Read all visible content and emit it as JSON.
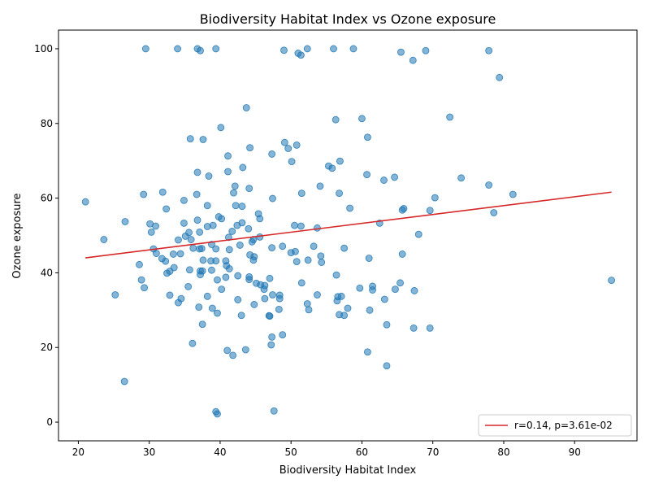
{
  "chart_data": {
    "type": "scatter",
    "title": "Biodiversity Habitat Index vs Ozone exposure",
    "xlabel": "Biodiversity Habitat Index",
    "ylabel": "Ozone exposure",
    "xlim": [
      17.2,
      98.8
    ],
    "ylim": [
      -5,
      105
    ],
    "xticks": [
      "20",
      "30",
      "40",
      "50",
      "60",
      "70",
      "80",
      "90"
    ],
    "yticks": [
      "0",
      "20",
      "40",
      "60",
      "80",
      "100"
    ],
    "grid": false,
    "legend_position": "bottom-right",
    "point_color": "#1f77b4",
    "line_color": "#d62728",
    "fit_line": {
      "label": "r=0.14, p=3.61e-02",
      "x": [
        21.0,
        95.2
      ],
      "y": [
        44.0,
        61.6
      ]
    },
    "points": [
      [
        29.5,
        100
      ],
      [
        34,
        100
      ],
      [
        36.8,
        100
      ],
      [
        37.2,
        99.5
      ],
      [
        39.4,
        100
      ],
      [
        49,
        99.6
      ],
      [
        51,
        98.8
      ],
      [
        51.4,
        98.3
      ],
      [
        52.3,
        100
      ],
      [
        56,
        100
      ],
      [
        58.8,
        100
      ],
      [
        65.5,
        99.1
      ],
      [
        67.2,
        96.9
      ],
      [
        69,
        99.5
      ],
      [
        77.9,
        99.5
      ],
      [
        79.4,
        92.3
      ],
      [
        43.7,
        84.2
      ],
      [
        60,
        81.3
      ],
      [
        56.3,
        81
      ],
      [
        72.4,
        81.7
      ],
      [
        40.1,
        78.9
      ],
      [
        35.8,
        75.9
      ],
      [
        37.6,
        75.7
      ],
      [
        60.8,
        76.3
      ],
      [
        49.1,
        74.9
      ],
      [
        50.8,
        74.2
      ],
      [
        49.6,
        73.3
      ],
      [
        44.2,
        73.5
      ],
      [
        41.1,
        71.3
      ],
      [
        47.3,
        71.8
      ],
      [
        50.1,
        69.8
      ],
      [
        43.2,
        68.2
      ],
      [
        56.9,
        69.9
      ],
      [
        55.3,
        68.6
      ],
      [
        55.8,
        68
      ],
      [
        36.8,
        66.9
      ],
      [
        38.4,
        65.9
      ],
      [
        41.1,
        67.1
      ],
      [
        60.7,
        66.3
      ],
      [
        64.6,
        65.6
      ],
      [
        63.1,
        64.8
      ],
      [
        74,
        65.4
      ],
      [
        42.1,
        63.2
      ],
      [
        44.1,
        62.6
      ],
      [
        54.1,
        63.2
      ],
      [
        77.9,
        63.5
      ],
      [
        31.9,
        61.6
      ],
      [
        29.2,
        61
      ],
      [
        36.7,
        61
      ],
      [
        41.9,
        61.4
      ],
      [
        51.5,
        61.3
      ],
      [
        56.8,
        61.3
      ],
      [
        70.3,
        60.1
      ],
      [
        81.3,
        61
      ],
      [
        21,
        59
      ],
      [
        34.9,
        59.4
      ],
      [
        47.4,
        59.9
      ],
      [
        38.2,
        58
      ],
      [
        42.2,
        58
      ],
      [
        43.1,
        57.8
      ],
      [
        65.9,
        57.2
      ],
      [
        65.7,
        56.8
      ],
      [
        69.6,
        56.7
      ],
      [
        58.3,
        57.3
      ],
      [
        32.4,
        57.1
      ],
      [
        78.6,
        56.1
      ],
      [
        39.8,
        55
      ],
      [
        40.2,
        54.5
      ],
      [
        45.4,
        55.8
      ],
      [
        45.6,
        54.5
      ],
      [
        26.6,
        53.7
      ],
      [
        30.1,
        53.1
      ],
      [
        30.9,
        52.5
      ],
      [
        34.9,
        53.3
      ],
      [
        36.8,
        54.1
      ],
      [
        38.2,
        52.4
      ],
      [
        39,
        52.7
      ],
      [
        42.4,
        52.7
      ],
      [
        43.1,
        53.4
      ],
      [
        44,
        51.8
      ],
      [
        50.5,
        52.7
      ],
      [
        51.4,
        52.5
      ],
      [
        53.7,
        52
      ],
      [
        62.5,
        53.3
      ],
      [
        30.3,
        50.9
      ],
      [
        35.6,
        50.8
      ],
      [
        37.1,
        50.9
      ],
      [
        41.7,
        51.1
      ],
      [
        41.2,
        49.5
      ],
      [
        45.6,
        49.6
      ],
      [
        44.7,
        48.9
      ],
      [
        44.5,
        48.3
      ],
      [
        35.1,
        49.8
      ],
      [
        35.9,
        48.9
      ],
      [
        34.1,
        48.8
      ],
      [
        23.6,
        48.9
      ],
      [
        68,
        50.3
      ],
      [
        30.6,
        46.4
      ],
      [
        31,
        45.2
      ],
      [
        33.4,
        45
      ],
      [
        34.4,
        45.1
      ],
      [
        36.2,
        46.6
      ],
      [
        37.1,
        46.4
      ],
      [
        37.4,
        46.5
      ],
      [
        39.4,
        46.4
      ],
      [
        41.3,
        46.2
      ],
      [
        38.8,
        47.6
      ],
      [
        42.8,
        47.4
      ],
      [
        48.8,
        47.1
      ],
      [
        53.2,
        47.1
      ],
      [
        57.5,
        46.6
      ],
      [
        47.3,
        46.7
      ],
      [
        50,
        45.4
      ],
      [
        50.6,
        45.7
      ],
      [
        44.2,
        44.8
      ],
      [
        44.8,
        44.3
      ],
      [
        44.7,
        43.4
      ],
      [
        54.2,
        44.5
      ],
      [
        52.4,
        43.4
      ],
      [
        54.3,
        42.8
      ],
      [
        50.8,
        43
      ],
      [
        61,
        43.9
      ],
      [
        65.7,
        45
      ],
      [
        31.8,
        43.8
      ],
      [
        32.3,
        43.1
      ],
      [
        37.6,
        43.4
      ],
      [
        38.7,
        43.2
      ],
      [
        39.4,
        43.2
      ],
      [
        40.8,
        43.2
      ],
      [
        40.9,
        41.9
      ],
      [
        41.3,
        41.1
      ],
      [
        28.6,
        42.2
      ],
      [
        33.5,
        41.4
      ],
      [
        35.7,
        40.8
      ],
      [
        37.2,
        40.5
      ],
      [
        37.5,
        40.5
      ],
      [
        38.8,
        40.7
      ],
      [
        32.9,
        40.4
      ],
      [
        32.5,
        39.9
      ],
      [
        37.2,
        39.5
      ],
      [
        40.8,
        38.8
      ],
      [
        42.5,
        39.2
      ],
      [
        44.1,
        38.9
      ],
      [
        44.1,
        38.2
      ],
      [
        39.6,
        38.1
      ],
      [
        28.9,
        38.1
      ],
      [
        47,
        38.5
      ],
      [
        45.1,
        37.2
      ],
      [
        45.7,
        36.8
      ],
      [
        46.3,
        36.6
      ],
      [
        46.2,
        35.6
      ],
      [
        51.5,
        37.3
      ],
      [
        56.4,
        39.4
      ],
      [
        59.7,
        35.9
      ],
      [
        61.5,
        36.4
      ],
      [
        61.5,
        35.4
      ],
      [
        64.7,
        35.6
      ],
      [
        65.4,
        37.3
      ],
      [
        67.4,
        35.2
      ],
      [
        35.5,
        36.3
      ],
      [
        29.3,
        36
      ],
      [
        40.2,
        35.6
      ],
      [
        25.2,
        34.1
      ],
      [
        32.9,
        34
      ],
      [
        34.5,
        33.1
      ],
      [
        38.2,
        33.7
      ],
      [
        42.5,
        32.8
      ],
      [
        47.4,
        34.1
      ],
      [
        48.4,
        34
      ],
      [
        48.4,
        33.1
      ],
      [
        46.3,
        33.1
      ],
      [
        53.7,
        34.1
      ],
      [
        56.6,
        33.6
      ],
      [
        56.5,
        32.5
      ],
      [
        57.1,
        33.7
      ],
      [
        63.2,
        32.9
      ],
      [
        34.1,
        32
      ],
      [
        37,
        30.8
      ],
      [
        38.9,
        30.5
      ],
      [
        44.8,
        31.5
      ],
      [
        48.3,
        30.2
      ],
      [
        52.3,
        31.7
      ],
      [
        52.5,
        30.1
      ],
      [
        58,
        30.5
      ],
      [
        61.1,
        30
      ],
      [
        39.6,
        29.2
      ],
      [
        43,
        28.6
      ],
      [
        46.9,
        28.5
      ],
      [
        47,
        28.4
      ],
      [
        56.8,
        28.8
      ],
      [
        57.5,
        28.6
      ],
      [
        37.5,
        26.2
      ],
      [
        63.5,
        26.1
      ],
      [
        67.3,
        25.2
      ],
      [
        69.6,
        25.2
      ],
      [
        48.8,
        23.4
      ],
      [
        47.3,
        22.8
      ],
      [
        36.1,
        21.1
      ],
      [
        47.2,
        20.7
      ],
      [
        41,
        19.2
      ],
      [
        43.6,
        19.4
      ],
      [
        60.8,
        18.8
      ],
      [
        41.8,
        17.9
      ],
      [
        63.5,
        15.1
      ],
      [
        26.5,
        10.9
      ],
      [
        39.4,
        2.8
      ],
      [
        39.6,
        2.2
      ],
      [
        47.6,
        3
      ],
      [
        95.2,
        38
      ]
    ]
  }
}
